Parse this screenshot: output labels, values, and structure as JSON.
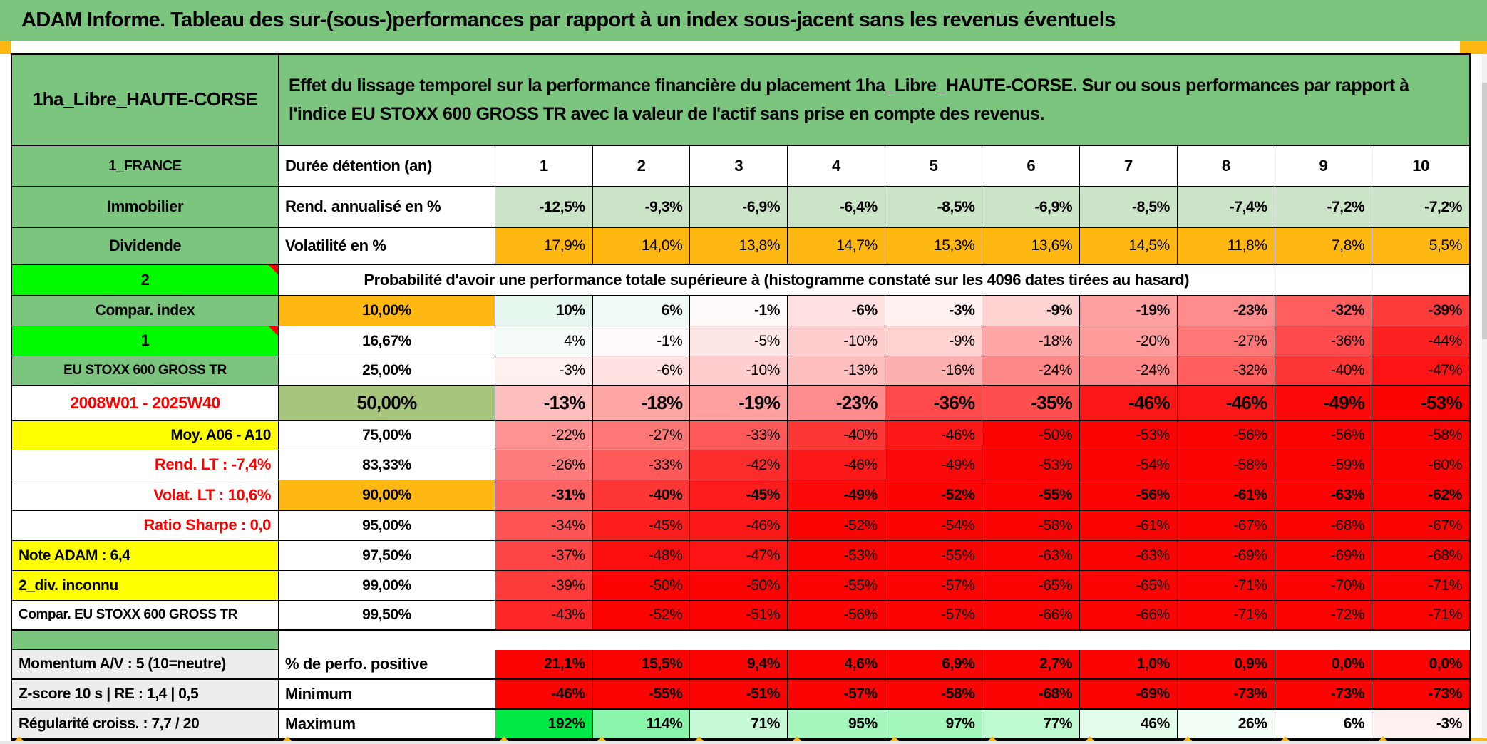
{
  "title": "ADAM Informe. Tableau des sur-(sous-)performances par rapport à un index sous-jacent sans les revenus éventuels",
  "header": {
    "placement": "1ha_Libre_HAUTE-CORSE",
    "description": "Effet du lissage temporel sur la performance financière du placement 1ha_Libre_HAUTE-CORSE. Sur ou sous performances par rapport à l'indice EU STOXX 600 GROSS TR avec la valeur de l'actif sans prise en compte des revenus."
  },
  "colors": {
    "green": "#7CC57E",
    "bright_green": "#00FB00",
    "olive": "#A8C57E",
    "light_green_row": "#CBE3C6",
    "orange": "#FEB811",
    "yellow": "#FFFF00",
    "gray_label": "#EDEDED",
    "red_full": "#FD0404",
    "max_green": "#00E845",
    "red_text": "#FF0000"
  },
  "chart_data": {
    "type": "table",
    "duration_label": "Durée détention (an)",
    "durations": [
      "1",
      "2",
      "3",
      "4",
      "5",
      "6",
      "7",
      "8",
      "9",
      "10"
    ],
    "top_rows": [
      {
        "label": "1_FRANCE",
        "metric": "Durée détention (an)",
        "values": [
          "1",
          "2",
          "3",
          "4",
          "5",
          "6",
          "7",
          "8",
          "9",
          "10"
        ],
        "style": "header"
      },
      {
        "label": "Immobilier",
        "metric": "Rend. annualisé en %",
        "values": [
          "-12,5%",
          "-9,3%",
          "-6,9%",
          "-6,4%",
          "-8,5%",
          "-6,9%",
          "-8,5%",
          "-7,4%",
          "-7,2%",
          "-7,2%"
        ],
        "style": "ltgreen"
      },
      {
        "label": "Dividende",
        "metric": "Volatilité en %",
        "values": [
          "17,9%",
          "14,0%",
          "13,8%",
          "14,7%",
          "15,3%",
          "13,6%",
          "14,5%",
          "11,8%",
          "7,8%",
          "5,5%"
        ],
        "style": "orange"
      }
    ],
    "probability_banner": {
      "label": "2",
      "text": "Probabilité d'avoir une performance totale supérieure à (histogramme constaté sur les 4096 dates tirées au hasard)",
      "empty_trailing_cells": 2
    },
    "matrix_rows": [
      {
        "label": "Compar. index",
        "labelStyle": "green",
        "threshold": "10,00%",
        "thresholdBg": "orange",
        "bold": true,
        "big": false,
        "values": [
          10,
          6,
          -1,
          -6,
          -3,
          -9,
          -19,
          -23,
          -32,
          -39
        ]
      },
      {
        "label": "1",
        "labelStyle": "bright",
        "marker": true,
        "threshold": "16,67%",
        "thresholdBg": "white",
        "bold": false,
        "big": false,
        "values": [
          4,
          -1,
          -5,
          -10,
          -9,
          -18,
          -20,
          -27,
          -36,
          -44
        ]
      },
      {
        "label": "EU STOXX 600 GROSS TR",
        "labelStyle": "green-sm",
        "threshold": "25,00%",
        "thresholdBg": "white",
        "bold": false,
        "big": false,
        "values": [
          -3,
          -6,
          -10,
          -13,
          -16,
          -24,
          -24,
          -32,
          -40,
          -47
        ]
      },
      {
        "label": "2008W01 - 2025W40",
        "labelStyle": "red-center",
        "threshold": "50,00%",
        "thresholdBg": "olive",
        "bold": true,
        "big": true,
        "values": [
          -13,
          -18,
          -19,
          -23,
          -36,
          -35,
          -46,
          -46,
          -49,
          -53
        ]
      },
      {
        "label": "Moy. A06 - A10",
        "labelStyle": "yellow-right",
        "threshold": "75,00%",
        "thresholdBg": "white",
        "bold": false,
        "big": false,
        "values": [
          -22,
          -27,
          -33,
          -40,
          -46,
          -50,
          -53,
          -56,
          -56,
          -58
        ]
      },
      {
        "label": "Rend. LT :   -7,4%",
        "labelStyle": "red-right",
        "threshold": "83,33%",
        "thresholdBg": "white",
        "bold": false,
        "big": false,
        "values": [
          -26,
          -33,
          -42,
          -46,
          -49,
          -53,
          -54,
          -58,
          -59,
          -60
        ]
      },
      {
        "label": "Volat. LT :   10,6%",
        "labelStyle": "red-right",
        "threshold": "90,00%",
        "thresholdBg": "orange",
        "bold": true,
        "big": false,
        "values": [
          -31,
          -40,
          -45,
          -49,
          -52,
          -55,
          -56,
          -61,
          -63,
          -62
        ]
      },
      {
        "label": "Ratio Sharpe :   0,0",
        "labelStyle": "red-right",
        "threshold": "95,00%",
        "thresholdBg": "white",
        "bold": false,
        "big": false,
        "values": [
          -34,
          -45,
          -46,
          -52,
          -54,
          -58,
          -61,
          -67,
          -68,
          -67
        ]
      },
      {
        "label": "Note ADAM : 6,4",
        "labelStyle": "yellow-left",
        "threshold": "97,50%",
        "thresholdBg": "white",
        "bold": false,
        "big": false,
        "values": [
          -37,
          -48,
          -47,
          -53,
          -55,
          -63,
          -63,
          -69,
          -69,
          -68
        ]
      },
      {
        "label": "2_div. inconnu",
        "labelStyle": "yellow-left",
        "threshold": "99,00%",
        "thresholdBg": "white",
        "bold": false,
        "big": false,
        "values": [
          -39,
          -50,
          -50,
          -55,
          -57,
          -65,
          -65,
          -71,
          -70,
          -71
        ]
      },
      {
        "label": "Compar. EU STOXX 600 GROSS TR",
        "labelStyle": "white-left",
        "threshold": "99,50%",
        "thresholdBg": "white",
        "bold": false,
        "big": false,
        "values": [
          -43,
          -52,
          -51,
          -56,
          -57,
          -66,
          -66,
          -71,
          -72,
          -71
        ]
      }
    ],
    "bottom_rows": [
      {
        "label": "Momentum A/V : 5 (10=neutre)",
        "metric": "% de perfo. positive",
        "scale": "red",
        "values": [
          "21,1%",
          "15,5%",
          "9,4%",
          "4,6%",
          "6,9%",
          "2,7%",
          "1,0%",
          "0,9%",
          "0,0%",
          "0,0%"
        ]
      },
      {
        "label": "Z-score 10 s | RE : 1,4 | 0,5",
        "metric": "Minimum",
        "scale": "red",
        "values": [
          "-46%",
          "-55%",
          "-51%",
          "-57%",
          "-58%",
          "-68%",
          "-69%",
          "-73%",
          "-73%",
          "-73%"
        ]
      },
      {
        "label": "Régularité croiss. : 7,7 / 20",
        "metric": "Maximum",
        "scale": "maxgreen",
        "values": [
          "192%",
          "114%",
          "71%",
          "95%",
          "97%",
          "77%",
          "46%",
          "26%",
          "6%",
          "-3%"
        ]
      }
    ]
  }
}
